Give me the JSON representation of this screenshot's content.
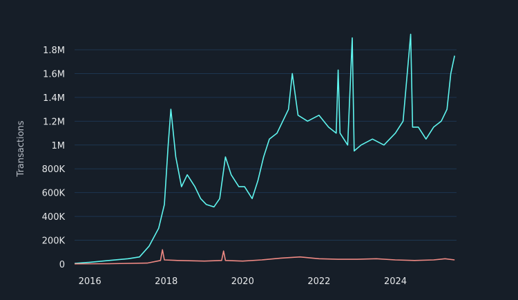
{
  "chart_data": {
    "type": "line",
    "title": "",
    "xlabel": "",
    "ylabel": "Transactions",
    "xlim": [
      2015.6,
      2025.6
    ],
    "ylim": [
      0,
      1800000
    ],
    "grid": true,
    "x_ticks": [
      {
        "value": 2016,
        "label": "2016"
      },
      {
        "value": 2018,
        "label": "2018"
      },
      {
        "value": 2020,
        "label": "2020"
      },
      {
        "value": 2022,
        "label": "2022"
      },
      {
        "value": 2024,
        "label": "2024"
      }
    ],
    "y_ticks": [
      {
        "value": 0,
        "label": "0"
      },
      {
        "value": 200000,
        "label": "200K"
      },
      {
        "value": 400000,
        "label": "400K"
      },
      {
        "value": 600000,
        "label": "600K"
      },
      {
        "value": 800000,
        "label": "800K"
      },
      {
        "value": 1000000,
        "label": "1M"
      },
      {
        "value": 1200000,
        "label": "1.2M"
      },
      {
        "value": 1400000,
        "label": "1.4M"
      },
      {
        "value": 1600000,
        "label": "1.6M"
      },
      {
        "value": 1800000,
        "label": "1.8M"
      }
    ],
    "series": [
      {
        "color": "#5ff5ef",
        "x": [
          2015.6,
          2016.0,
          2016.5,
          2017.0,
          2017.3,
          2017.55,
          2017.8,
          2017.95,
          2018.05,
          2018.12,
          2018.25,
          2018.4,
          2018.55,
          2018.75,
          2018.9,
          2019.05,
          2019.25,
          2019.4,
          2019.55,
          2019.7,
          2019.9,
          2020.05,
          2020.25,
          2020.4,
          2020.55,
          2020.7,
          2020.9,
          2021.05,
          2021.2,
          2021.3,
          2021.45,
          2021.7,
          2022.0,
          2022.25,
          2022.45,
          2022.5,
          2022.55,
          2022.75,
          2022.87,
          2022.92,
          2023.1,
          2023.4,
          2023.7,
          2024.0,
          2024.2,
          2024.4,
          2024.45,
          2024.6,
          2024.8,
          2025.0,
          2025.2,
          2025.35,
          2025.45,
          2025.55
        ],
        "y": [
          5000,
          15000,
          30000,
          45000,
          60000,
          150000,
          300000,
          500000,
          1000000,
          1300000,
          900000,
          650000,
          750000,
          650000,
          550000,
          500000,
          480000,
          550000,
          900000,
          750000,
          650000,
          650000,
          550000,
          700000,
          900000,
          1050000,
          1100000,
          1200000,
          1300000,
          1600000,
          1250000,
          1200000,
          1250000,
          1150000,
          1100000,
          1630000,
          1100000,
          1000000,
          1900000,
          950000,
          1000000,
          1050000,
          1000000,
          1100000,
          1200000,
          1930000,
          1150000,
          1150000,
          1050000,
          1150000,
          1200000,
          1300000,
          1600000,
          1750000
        ]
      },
      {
        "color": "#f08a84",
        "x": [
          2015.6,
          2016.5,
          2017.5,
          2017.85,
          2017.9,
          2017.95,
          2018.3,
          2019.0,
          2019.45,
          2019.5,
          2019.55,
          2020.0,
          2020.5,
          2021.0,
          2021.5,
          2022.0,
          2022.5,
          2023.0,
          2023.5,
          2024.0,
          2024.5,
          2025.0,
          2025.3,
          2025.55
        ],
        "y": [
          2000,
          3000,
          8000,
          30000,
          120000,
          35000,
          30000,
          25000,
          30000,
          110000,
          30000,
          25000,
          35000,
          50000,
          60000,
          45000,
          40000,
          40000,
          45000,
          35000,
          30000,
          35000,
          45000,
          35000
        ]
      }
    ]
  }
}
